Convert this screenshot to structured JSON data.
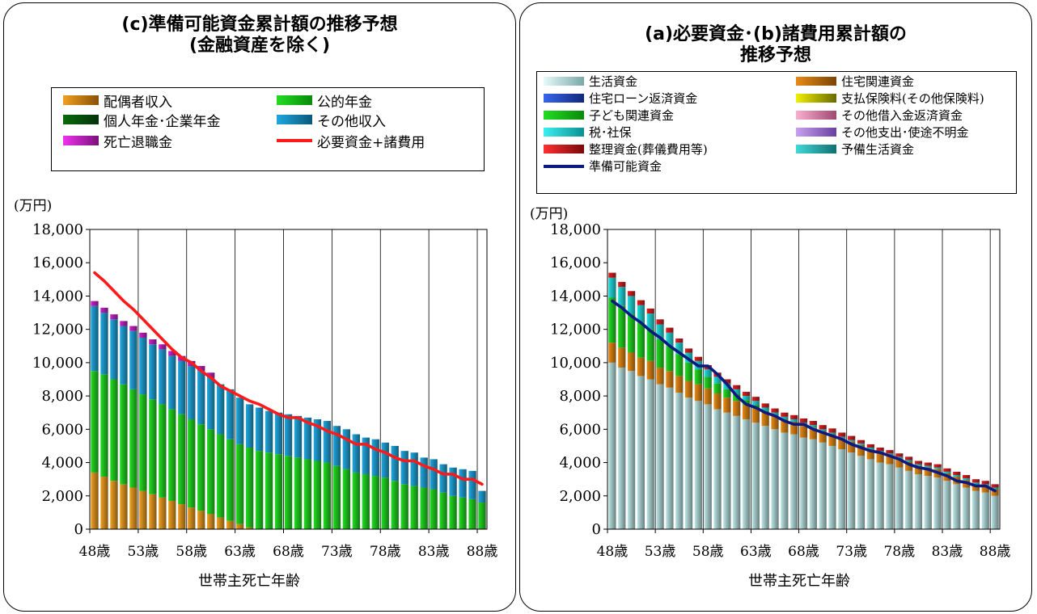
{
  "chart_data": [
    {
      "type": "bar",
      "stacked": true,
      "title_lines": [
        "(c)準備可能資金累計額の推移予想",
        "(金融資産を除く)"
      ],
      "ylabel": "(万円)",
      "xlabel": "世帯主死亡年齢",
      "ylim": [
        0,
        18000
      ],
      "yticks": [
        "0",
        "2,000",
        "4,000",
        "6,000",
        "8,000",
        "10,000",
        "12,000",
        "14,000",
        "16,000",
        "18,000"
      ],
      "categories": [
        "48歳",
        "49歳",
        "50歳",
        "51歳",
        "52歳",
        "53歳",
        "54歳",
        "55歳",
        "56歳",
        "57歳",
        "58歳",
        "59歳",
        "60歳",
        "61歳",
        "62歳",
        "63歳",
        "64歳",
        "65歳",
        "66歳",
        "67歳",
        "68歳",
        "69歳",
        "70歳",
        "71歳",
        "72歳",
        "73歳",
        "74歳",
        "75歳",
        "76歳",
        "77歳",
        "78歳",
        "79歳",
        "80歳",
        "81歳",
        "82歳",
        "83歳",
        "84歳",
        "85歳",
        "86歳",
        "87歳",
        "88歳"
      ],
      "xtick_labels": [
        "48歳",
        "53歳",
        "58歳",
        "63歳",
        "68歳",
        "73歳",
        "78歳",
        "83歳",
        "88歳"
      ],
      "legend_position": "top",
      "grid": "vertical",
      "series": [
        {
          "name": "配偶者収入",
          "color": "#f0a020",
          "values": [
            3400,
            3150,
            2900,
            2700,
            2500,
            2300,
            2100,
            1900,
            1700,
            1500,
            1300,
            1100,
            900,
            700,
            500,
            300,
            100,
            0,
            0,
            0,
            0,
            0,
            0,
            0,
            0,
            0,
            0,
            0,
            0,
            0,
            0,
            0,
            0,
            0,
            0,
            0,
            0,
            0,
            0,
            0,
            0
          ]
        },
        {
          "name": "公的年金",
          "color": "#22dd22",
          "values": [
            6100,
            6150,
            6100,
            6000,
            5900,
            5800,
            5700,
            5600,
            5500,
            5400,
            5300,
            5200,
            5100,
            5000,
            4900,
            4800,
            4800,
            4700,
            4600,
            4500,
            4400,
            4300,
            4200,
            4100,
            4000,
            3800,
            3600,
            3400,
            3300,
            3200,
            3100,
            2900,
            2700,
            2600,
            2500,
            2400,
            2200,
            2000,
            1900,
            1800,
            1600
          ]
        },
        {
          "name": "個人年金･企業年金",
          "color": "#0a6a0a",
          "values": [
            0,
            0,
            0,
            0,
            0,
            0,
            0,
            0,
            0,
            0,
            0,
            0,
            0,
            0,
            0,
            0,
            0,
            0,
            0,
            0,
            0,
            0,
            0,
            0,
            0,
            0,
            0,
            0,
            0,
            0,
            0,
            0,
            0,
            0,
            0,
            0,
            0,
            0,
            0,
            0,
            0
          ]
        },
        {
          "name": "その他収入",
          "color": "#20a8e0",
          "values": [
            3900,
            3700,
            3600,
            3500,
            3500,
            3400,
            3300,
            3300,
            3200,
            3200,
            3200,
            3200,
            3100,
            3000,
            3000,
            2800,
            2600,
            2600,
            2500,
            2500,
            2500,
            2500,
            2500,
            2500,
            2500,
            2400,
            2400,
            2300,
            2200,
            2200,
            2100,
            2100,
            2000,
            2000,
            1800,
            1800,
            1700,
            1700,
            1700,
            1700,
            700
          ]
        },
        {
          "name": "死亡退職金",
          "color": "#cc22cc",
          "values": [
            300,
            300,
            300,
            300,
            300,
            300,
            300,
            300,
            300,
            300,
            300,
            300,
            300,
            0,
            0,
            0,
            0,
            0,
            0,
            0,
            0,
            0,
            0,
            0,
            0,
            0,
            0,
            0,
            0,
            0,
            0,
            0,
            0,
            0,
            0,
            0,
            0,
            0,
            0,
            0,
            0
          ]
        },
        {
          "name": "必要資金+諸費用",
          "type": "line",
          "color": "#ff1a1a",
          "values": [
            15400,
            14900,
            14300,
            13700,
            13200,
            12600,
            12000,
            11400,
            10800,
            10300,
            10000,
            9500,
            9100,
            8600,
            8300,
            8000,
            7700,
            7500,
            7200,
            6900,
            6700,
            6700,
            6400,
            6200,
            5900,
            5700,
            5400,
            5100,
            5100,
            4800,
            4600,
            4300,
            4100,
            4100,
            3800,
            3600,
            3300,
            3300,
            3000,
            3000,
            2700
          ]
        }
      ]
    },
    {
      "type": "bar",
      "stacked": true,
      "title_lines": [
        "(a)必要資金･(b)諸費用累計額の",
        "推移予想"
      ],
      "ylabel": "(万円)",
      "xlabel": "世帯主死亡年齢",
      "ylim": [
        0,
        18000
      ],
      "yticks": [
        "0",
        "2,000",
        "4,000",
        "6,000",
        "8,000",
        "10,000",
        "12,000",
        "14,000",
        "16,000",
        "18,000"
      ],
      "categories": [
        "48歳",
        "49歳",
        "50歳",
        "51歳",
        "52歳",
        "53歳",
        "54歳",
        "55歳",
        "56歳",
        "57歳",
        "58歳",
        "59歳",
        "60歳",
        "61歳",
        "62歳",
        "63歳",
        "64歳",
        "65歳",
        "66歳",
        "67歳",
        "68歳",
        "69歳",
        "70歳",
        "71歳",
        "72歳",
        "73歳",
        "74歳",
        "75歳",
        "76歳",
        "77歳",
        "78歳",
        "79歳",
        "80歳",
        "81歳",
        "82歳",
        "83歳",
        "84歳",
        "85歳",
        "86歳",
        "87歳",
        "88歳"
      ],
      "xtick_labels": [
        "48歳",
        "53歳",
        "58歳",
        "63歳",
        "68歳",
        "73歳",
        "78歳",
        "83歳",
        "88歳"
      ],
      "legend_position": "top",
      "grid": "vertical",
      "series": [
        {
          "name": "生活資金",
          "color": "#bde6e6",
          "values": [
            10000,
            9700,
            9500,
            9200,
            9000,
            8700,
            8500,
            8200,
            7900,
            7700,
            7500,
            7200,
            7000,
            6800,
            6600,
            6400,
            6200,
            6000,
            5800,
            5700,
            5500,
            5400,
            5200,
            5000,
            4800,
            4600,
            4400,
            4200,
            4000,
            3900,
            3700,
            3500,
            3300,
            3200,
            3100,
            2900,
            2700,
            2500,
            2300,
            2200,
            2000
          ]
        },
        {
          "name": "住宅関連資金",
          "color": "#e88a14",
          "values": [
            1200,
            1200,
            1100,
            1100,
            1100,
            1000,
            1000,
            1000,
            1000,
            1000,
            950,
            950,
            900,
            900,
            850,
            850,
            800,
            800,
            800,
            750,
            750,
            700,
            700,
            700,
            650,
            650,
            650,
            600,
            600,
            550,
            550,
            550,
            500,
            500,
            500,
            450,
            450,
            450,
            400,
            400,
            400
          ]
        },
        {
          "name": "住宅ローン返済資金",
          "color": "#2b55d9",
          "values": [
            0,
            0,
            0,
            0,
            0,
            0,
            0,
            0,
            0,
            0,
            0,
            0,
            0,
            0,
            0,
            0,
            0,
            0,
            0,
            0,
            0,
            0,
            0,
            0,
            0,
            0,
            0,
            0,
            0,
            0,
            0,
            0,
            0,
            0,
            0,
            0,
            0,
            0,
            0,
            0,
            0
          ]
        },
        {
          "name": "支払保険料(その他保険料)",
          "color": "#e8e800",
          "values": [
            0,
            0,
            0,
            0,
            0,
            0,
            0,
            0,
            0,
            0,
            0,
            0,
            0,
            0,
            0,
            0,
            0,
            0,
            0,
            0,
            0,
            0,
            0,
            0,
            0,
            0,
            0,
            0,
            0,
            0,
            0,
            0,
            0,
            0,
            0,
            0,
            0,
            0,
            0,
            0,
            0
          ]
        },
        {
          "name": "子ども関連資金",
          "color": "#22dd22",
          "values": [
            2700,
            2500,
            2300,
            2100,
            1900,
            1700,
            1500,
            1300,
            1100,
            900,
            700,
            600,
            500,
            400,
            300,
            200,
            100,
            0,
            0,
            0,
            0,
            0,
            0,
            0,
            0,
            0,
            0,
            0,
            0,
            0,
            0,
            0,
            0,
            0,
            0,
            0,
            0,
            0,
            0,
            0,
            0
          ]
        },
        {
          "name": "その他借入金返済資金",
          "color": "#f0a0c8",
          "values": [
            0,
            0,
            0,
            0,
            0,
            0,
            0,
            0,
            0,
            0,
            0,
            0,
            0,
            0,
            0,
            0,
            0,
            0,
            0,
            0,
            0,
            0,
            0,
            0,
            0,
            0,
            0,
            0,
            0,
            0,
            0,
            0,
            0,
            0,
            0,
            0,
            0,
            0,
            0,
            0,
            0
          ]
        },
        {
          "name": "税･社保",
          "color": "#22e0e0",
          "values": [
            1200,
            1150,
            1100,
            1050,
            950,
            900,
            800,
            700,
            600,
            500,
            450,
            400,
            350,
            300,
            250,
            250,
            200,
            200,
            150,
            150,
            150,
            150,
            100,
            100,
            100,
            100,
            100,
            100,
            100,
            100,
            100,
            100,
            100,
            100,
            100,
            100,
            100,
            100,
            100,
            100,
            100
          ]
        },
        {
          "name": "その他支出･使途不明金",
          "color": "#b88ae8",
          "values": [
            0,
            0,
            0,
            0,
            0,
            0,
            0,
            0,
            0,
            0,
            0,
            0,
            0,
            0,
            0,
            0,
            0,
            0,
            0,
            0,
            0,
            0,
            0,
            0,
            0,
            0,
            0,
            0,
            0,
            0,
            0,
            0,
            0,
            0,
            0,
            0,
            0,
            0,
            0,
            0,
            0
          ]
        },
        {
          "name": "整理資金(葬儀費用等)",
          "color": "#e02020",
          "values": [
            300,
            300,
            300,
            300,
            300,
            300,
            300,
            250,
            250,
            250,
            250,
            250,
            250,
            250,
            250,
            250,
            250,
            250,
            250,
            250,
            250,
            250,
            250,
            250,
            250,
            250,
            200,
            200,
            200,
            200,
            200,
            200,
            200,
            200,
            200,
            200,
            200,
            200,
            200,
            200,
            200
          ]
        },
        {
          "name": "予備生活資金",
          "color": "#30c8c8",
          "values": [
            0,
            0,
            0,
            0,
            0,
            0,
            0,
            0,
            0,
            0,
            0,
            0,
            0,
            0,
            0,
            0,
            0,
            0,
            0,
            0,
            0,
            0,
            0,
            0,
            0,
            0,
            0,
            0,
            0,
            0,
            0,
            0,
            0,
            0,
            0,
            0,
            0,
            0,
            0,
            0,
            0
          ]
        },
        {
          "name": "準備可能資金",
          "type": "line",
          "color": "#0a1a80",
          "values": [
            13700,
            13300,
            12800,
            12400,
            11900,
            11500,
            11000,
            10600,
            10200,
            9800,
            9800,
            9300,
            8700,
            8000,
            7500,
            7300,
            7000,
            6800,
            6500,
            6300,
            6300,
            6000,
            5800,
            5600,
            5400,
            5100,
            4900,
            4700,
            4600,
            4400,
            4200,
            3900,
            3700,
            3600,
            3400,
            3200,
            2900,
            2800,
            2600,
            2600,
            2300
          ]
        }
      ]
    }
  ]
}
